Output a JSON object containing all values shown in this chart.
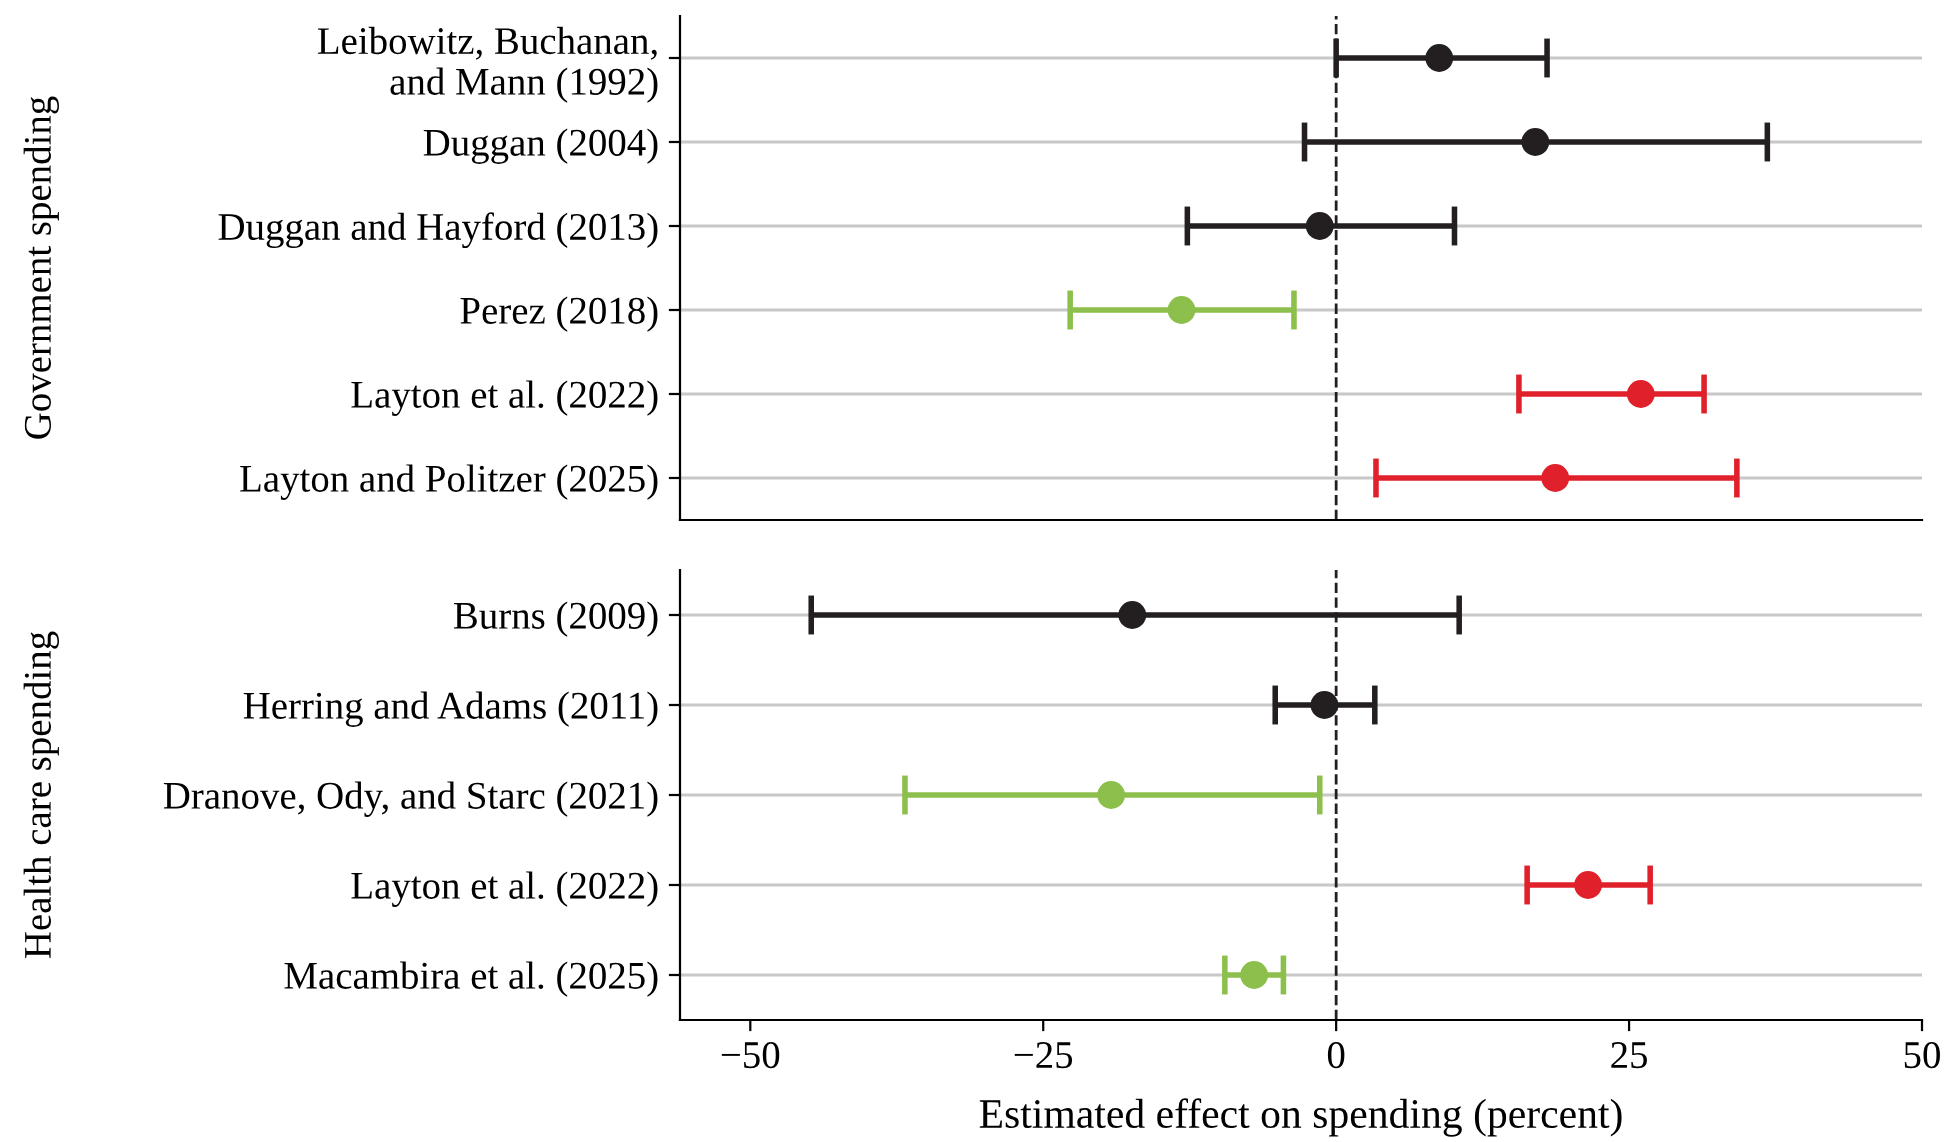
{
  "chart_data": [
    {
      "type": "scatter",
      "orientation": "horizontal",
      "ylabel": "Government spending",
      "marker": "circle",
      "grid": "y",
      "tick_labels": "y",
      "legend": false,
      "categories": [
        "Leibowitz, Buchanan,\nand Mann (1992)",
        "Duggan (2004)",
        "Duggan and Hayford (2013)",
        "Perez (2018)",
        "Layton et al. (2022)",
        "Layton and Politzer (2025)"
      ],
      "values": [
        8.8,
        17,
        -1.4,
        -13.2,
        26,
        18.7
      ],
      "errors": [
        [
          0,
          18
        ],
        [
          -2.7,
          36.8
        ],
        [
          -12.7,
          10.1
        ],
        [
          -22.7,
          -3.6
        ],
        [
          15.6,
          31.4
        ],
        [
          3.4,
          34.2
        ]
      ],
      "colors": [
        "#231f20",
        "#231f20",
        "#231f20",
        "#8cbf4b",
        "#e0202a",
        "#e0202a"
      ],
      "xlim": [
        -56,
        50
      ],
      "ref_lines": [
        {
          "axis": "x",
          "value": 0,
          "line_style": "dashed",
          "color": "#231f20"
        }
      ]
    },
    {
      "type": "scatter",
      "orientation": "horizontal",
      "ylabel": "Health care spending",
      "xlabel": "Estimated effect on spending (percent)",
      "marker": "circle",
      "grid": "y",
      "legend": false,
      "categories": [
        "Burns (2009)",
        "Herring and Adams (2011)",
        "Dranove, Ody, and Starc (2021)",
        "Layton et al. (2022)",
        "Macambira et al. (2025)"
      ],
      "values": [
        -17.4,
        -1,
        -19.2,
        21.5,
        -7
      ],
      "errors": [
        [
          -44.8,
          10.5
        ],
        [
          -5.2,
          3.3
        ],
        [
          -36.8,
          -1.4
        ],
        [
          16.3,
          26.8
        ],
        [
          -9.5,
          -4.5
        ]
      ],
      "colors": [
        "#231f20",
        "#231f20",
        "#8cbf4b",
        "#e0202a",
        "#8cbf4b"
      ],
      "xlim": [
        -56,
        50
      ],
      "xticks": [
        {
          "value": -50,
          "label": "−50"
        },
        {
          "value": -25,
          "label": "−25"
        },
        0,
        25,
        50
      ],
      "ref_lines": [
        {
          "axis": "x",
          "value": 0,
          "line_style": "dashed",
          "color": "#231f20"
        }
      ]
    }
  ]
}
